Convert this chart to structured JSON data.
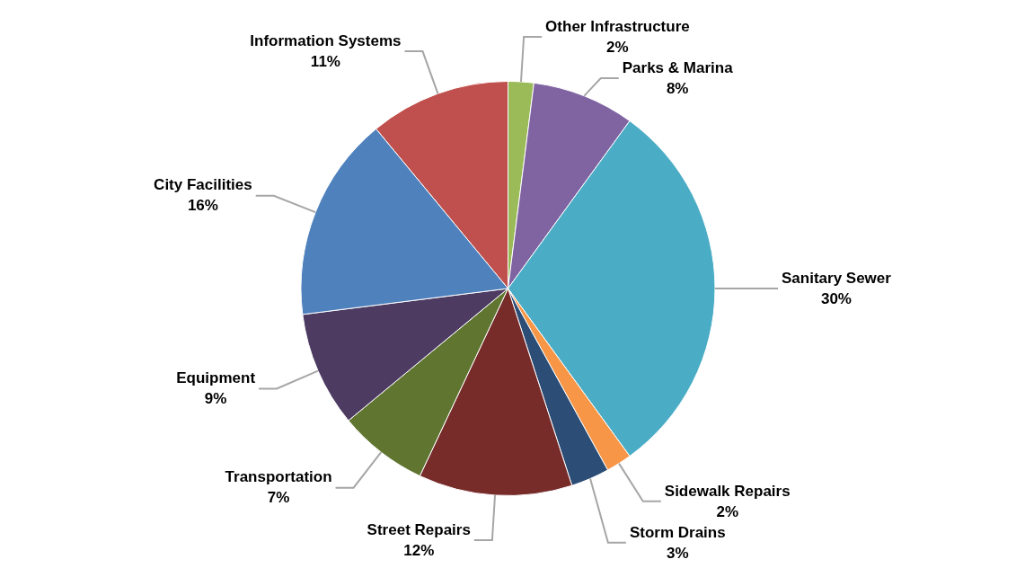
{
  "chart_data": {
    "type": "pie",
    "categories": [
      "Information Systems",
      "Other Infrastructure",
      "Parks & Marina",
      "Sanitary Sewer",
      "Sidewalk Repairs",
      "Storm Drains",
      "Street Repairs",
      "Transportation",
      "Equipment",
      "City Facilities"
    ],
    "values": [
      11,
      2,
      8,
      30,
      2,
      3,
      12,
      7,
      9,
      16
    ],
    "value_labels": [
      "11%",
      "2%",
      "8%",
      "30%",
      "2%",
      "3%",
      "12%",
      "7%",
      "9%",
      "16%"
    ],
    "colors": [
      "#c0504d",
      "#9bbb59",
      "#8064a2",
      "#4bacc6",
      "#f79646",
      "#2c4d75",
      "#772c2a",
      "#5f7530",
      "#4d3b62",
      "#4f81bd"
    ],
    "legend": false
  }
}
